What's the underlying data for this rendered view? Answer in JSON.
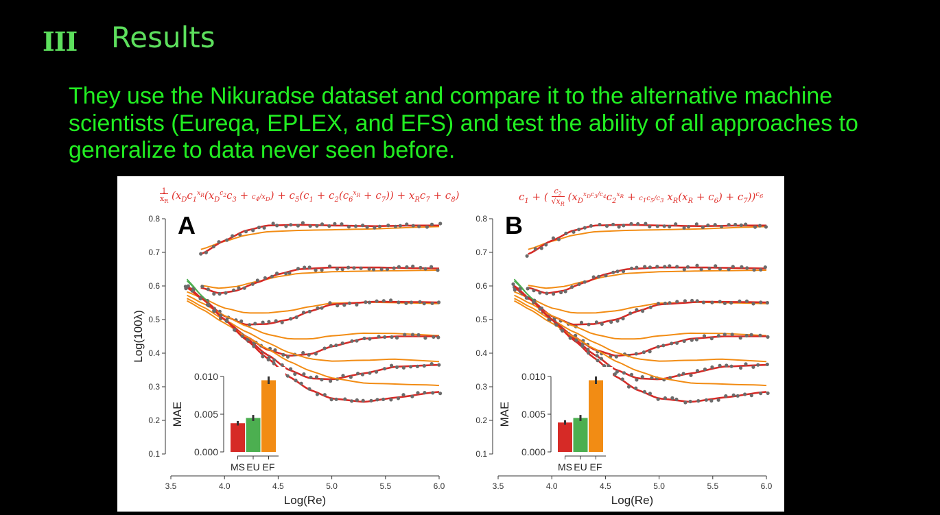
{
  "slide": {
    "section_numeral": "III",
    "title": "Results",
    "body": "They use the Nikuradse dataset and compare it to the alternative machine scientists (Eureqa, EPLEX, and EFS) and test the ability of all approaches to generalize to data never seen before."
  },
  "colors": {
    "ms": "#d62a26",
    "eu": "#4caf50",
    "ef": "#f28c14",
    "data": "#6b6b6b",
    "text_green": "#22ee22",
    "title_green": "#5de05d"
  },
  "chart_data": [
    {
      "type": "scatter",
      "panel_label": "A",
      "formula": "1/x_R (x_D c1^{x_R}(x_D^{c2} c3 + c4/x_D) + c5 (c1 + c2(c6^{x_R} + c7)) + x_R c7 + c8)",
      "xlabel": "Log(Re)",
      "ylabel": "Log(100λ)",
      "xlim": [
        3.5,
        6.0
      ],
      "ylim": [
        0.1,
        0.8
      ],
      "xticks": [
        "3.5",
        "4.0",
        "4.5",
        "5.0",
        "5.5",
        "6.0"
      ],
      "yticks": [
        "0.1",
        "0.2",
        "0.3",
        "0.4",
        "0.5",
        "0.6",
        "0.7",
        "0.8"
      ],
      "series_curves": [
        {
          "x": [
            3.78,
            4.0,
            4.2,
            4.4,
            4.7,
            5.0,
            5.4,
            5.8,
            6.0
          ],
          "y": [
            0.695,
            0.735,
            0.765,
            0.78,
            0.782,
            0.78,
            0.778,
            0.78,
            0.78
          ]
        },
        {
          "x": [
            3.78,
            3.95,
            4.1,
            4.3,
            4.5,
            4.7,
            5.0,
            5.4,
            5.8,
            6.0
          ],
          "y": [
            0.595,
            0.578,
            0.585,
            0.61,
            0.635,
            0.65,
            0.655,
            0.655,
            0.653,
            0.652
          ]
        },
        {
          "x": [
            3.65,
            3.8,
            4.0,
            4.2,
            4.4,
            4.6,
            4.8,
            5.0,
            5.4,
            5.8,
            6.0
          ],
          "y": [
            0.595,
            0.56,
            0.51,
            0.485,
            0.487,
            0.5,
            0.525,
            0.545,
            0.553,
            0.552,
            0.551
          ]
        },
        {
          "x": [
            3.65,
            3.8,
            4.0,
            4.2,
            4.4,
            4.6,
            4.8,
            5.0,
            5.3,
            5.6,
            6.0
          ],
          "y": [
            0.6,
            0.56,
            0.5,
            0.45,
            0.41,
            0.392,
            0.397,
            0.42,
            0.443,
            0.45,
            0.45
          ]
        },
        {
          "x": [
            3.65,
            3.8,
            4.0,
            4.2,
            4.4,
            4.6,
            4.8,
            5.0,
            5.3,
            5.6,
            6.0
          ],
          "y": [
            0.6,
            0.56,
            0.5,
            0.445,
            0.395,
            0.35,
            0.325,
            0.322,
            0.34,
            0.36,
            0.365
          ]
        },
        {
          "x": [
            3.65,
            3.8,
            4.0,
            4.2,
            4.4,
            4.6,
            4.8,
            5.0,
            5.3,
            5.6,
            6.0
          ],
          "y": [
            0.6,
            0.56,
            0.5,
            0.44,
            0.385,
            0.33,
            0.29,
            0.265,
            0.255,
            0.268,
            0.285
          ]
        }
      ],
      "inset": {
        "type": "bar",
        "categories": [
          "MS",
          "EU",
          "EF"
        ],
        "values": [
          0.0038,
          0.0045,
          0.0095
        ],
        "errors": [
          0.0003,
          0.0004,
          0.0005
        ],
        "ylabel": "MAE",
        "yticks": [
          "0.000",
          "0.005",
          "0.010"
        ],
        "ylim": [
          0,
          0.01
        ]
      }
    },
    {
      "type": "scatter",
      "panel_label": "B",
      "formula": "c1 + (c2/√x_R (x_D^{x_D c3/c4} c2^{x_R} + c1 c5/c3 x_R(x_R + c6) + c7))^{c6}",
      "xlabel": "Log(Re)",
      "ylabel": "",
      "xlim": [
        3.5,
        6.0
      ],
      "ylim": [
        0.1,
        0.8
      ],
      "xticks": [
        "3.5",
        "4.0",
        "4.5",
        "5.0",
        "5.5",
        "6.0"
      ],
      "yticks": [
        "0.1",
        "0.2",
        "0.3",
        "0.4",
        "0.5",
        "0.6",
        "0.7",
        "0.8"
      ],
      "series_curves": [
        {
          "x": [
            3.78,
            4.0,
            4.2,
            4.4,
            4.7,
            5.0,
            5.4,
            5.8,
            6.0
          ],
          "y": [
            0.695,
            0.735,
            0.765,
            0.78,
            0.782,
            0.78,
            0.778,
            0.78,
            0.78
          ]
        },
        {
          "x": [
            3.78,
            3.95,
            4.1,
            4.3,
            4.5,
            4.7,
            5.0,
            5.4,
            5.8,
            6.0
          ],
          "y": [
            0.595,
            0.578,
            0.585,
            0.61,
            0.635,
            0.65,
            0.655,
            0.655,
            0.653,
            0.652
          ]
        },
        {
          "x": [
            3.65,
            3.8,
            4.0,
            4.2,
            4.4,
            4.6,
            4.8,
            5.0,
            5.4,
            5.8,
            6.0
          ],
          "y": [
            0.595,
            0.56,
            0.51,
            0.485,
            0.487,
            0.5,
            0.525,
            0.545,
            0.553,
            0.552,
            0.551
          ]
        },
        {
          "x": [
            3.65,
            3.8,
            4.0,
            4.2,
            4.4,
            4.6,
            4.8,
            5.0,
            5.3,
            5.6,
            6.0
          ],
          "y": [
            0.6,
            0.56,
            0.5,
            0.45,
            0.41,
            0.392,
            0.397,
            0.42,
            0.443,
            0.45,
            0.45
          ]
        },
        {
          "x": [
            3.65,
            3.8,
            4.0,
            4.2,
            4.4,
            4.6,
            4.8,
            5.0,
            5.3,
            5.6,
            6.0
          ],
          "y": [
            0.6,
            0.56,
            0.5,
            0.445,
            0.395,
            0.35,
            0.325,
            0.322,
            0.34,
            0.36,
            0.365
          ]
        },
        {
          "x": [
            3.65,
            3.8,
            4.0,
            4.2,
            4.4,
            4.6,
            4.8,
            5.0,
            5.3,
            5.6,
            6.0
          ],
          "y": [
            0.6,
            0.56,
            0.5,
            0.44,
            0.385,
            0.33,
            0.29,
            0.265,
            0.255,
            0.268,
            0.285
          ]
        }
      ],
      "inset": {
        "type": "bar",
        "categories": [
          "MS",
          "EU",
          "EF"
        ],
        "values": [
          0.0039,
          0.0045,
          0.0095
        ],
        "errors": [
          0.0003,
          0.0004,
          0.0005
        ],
        "ylabel": "MAE",
        "yticks": [
          "0.000",
          "0.005",
          "0.010"
        ],
        "ylim": [
          0,
          0.01
        ]
      }
    }
  ]
}
